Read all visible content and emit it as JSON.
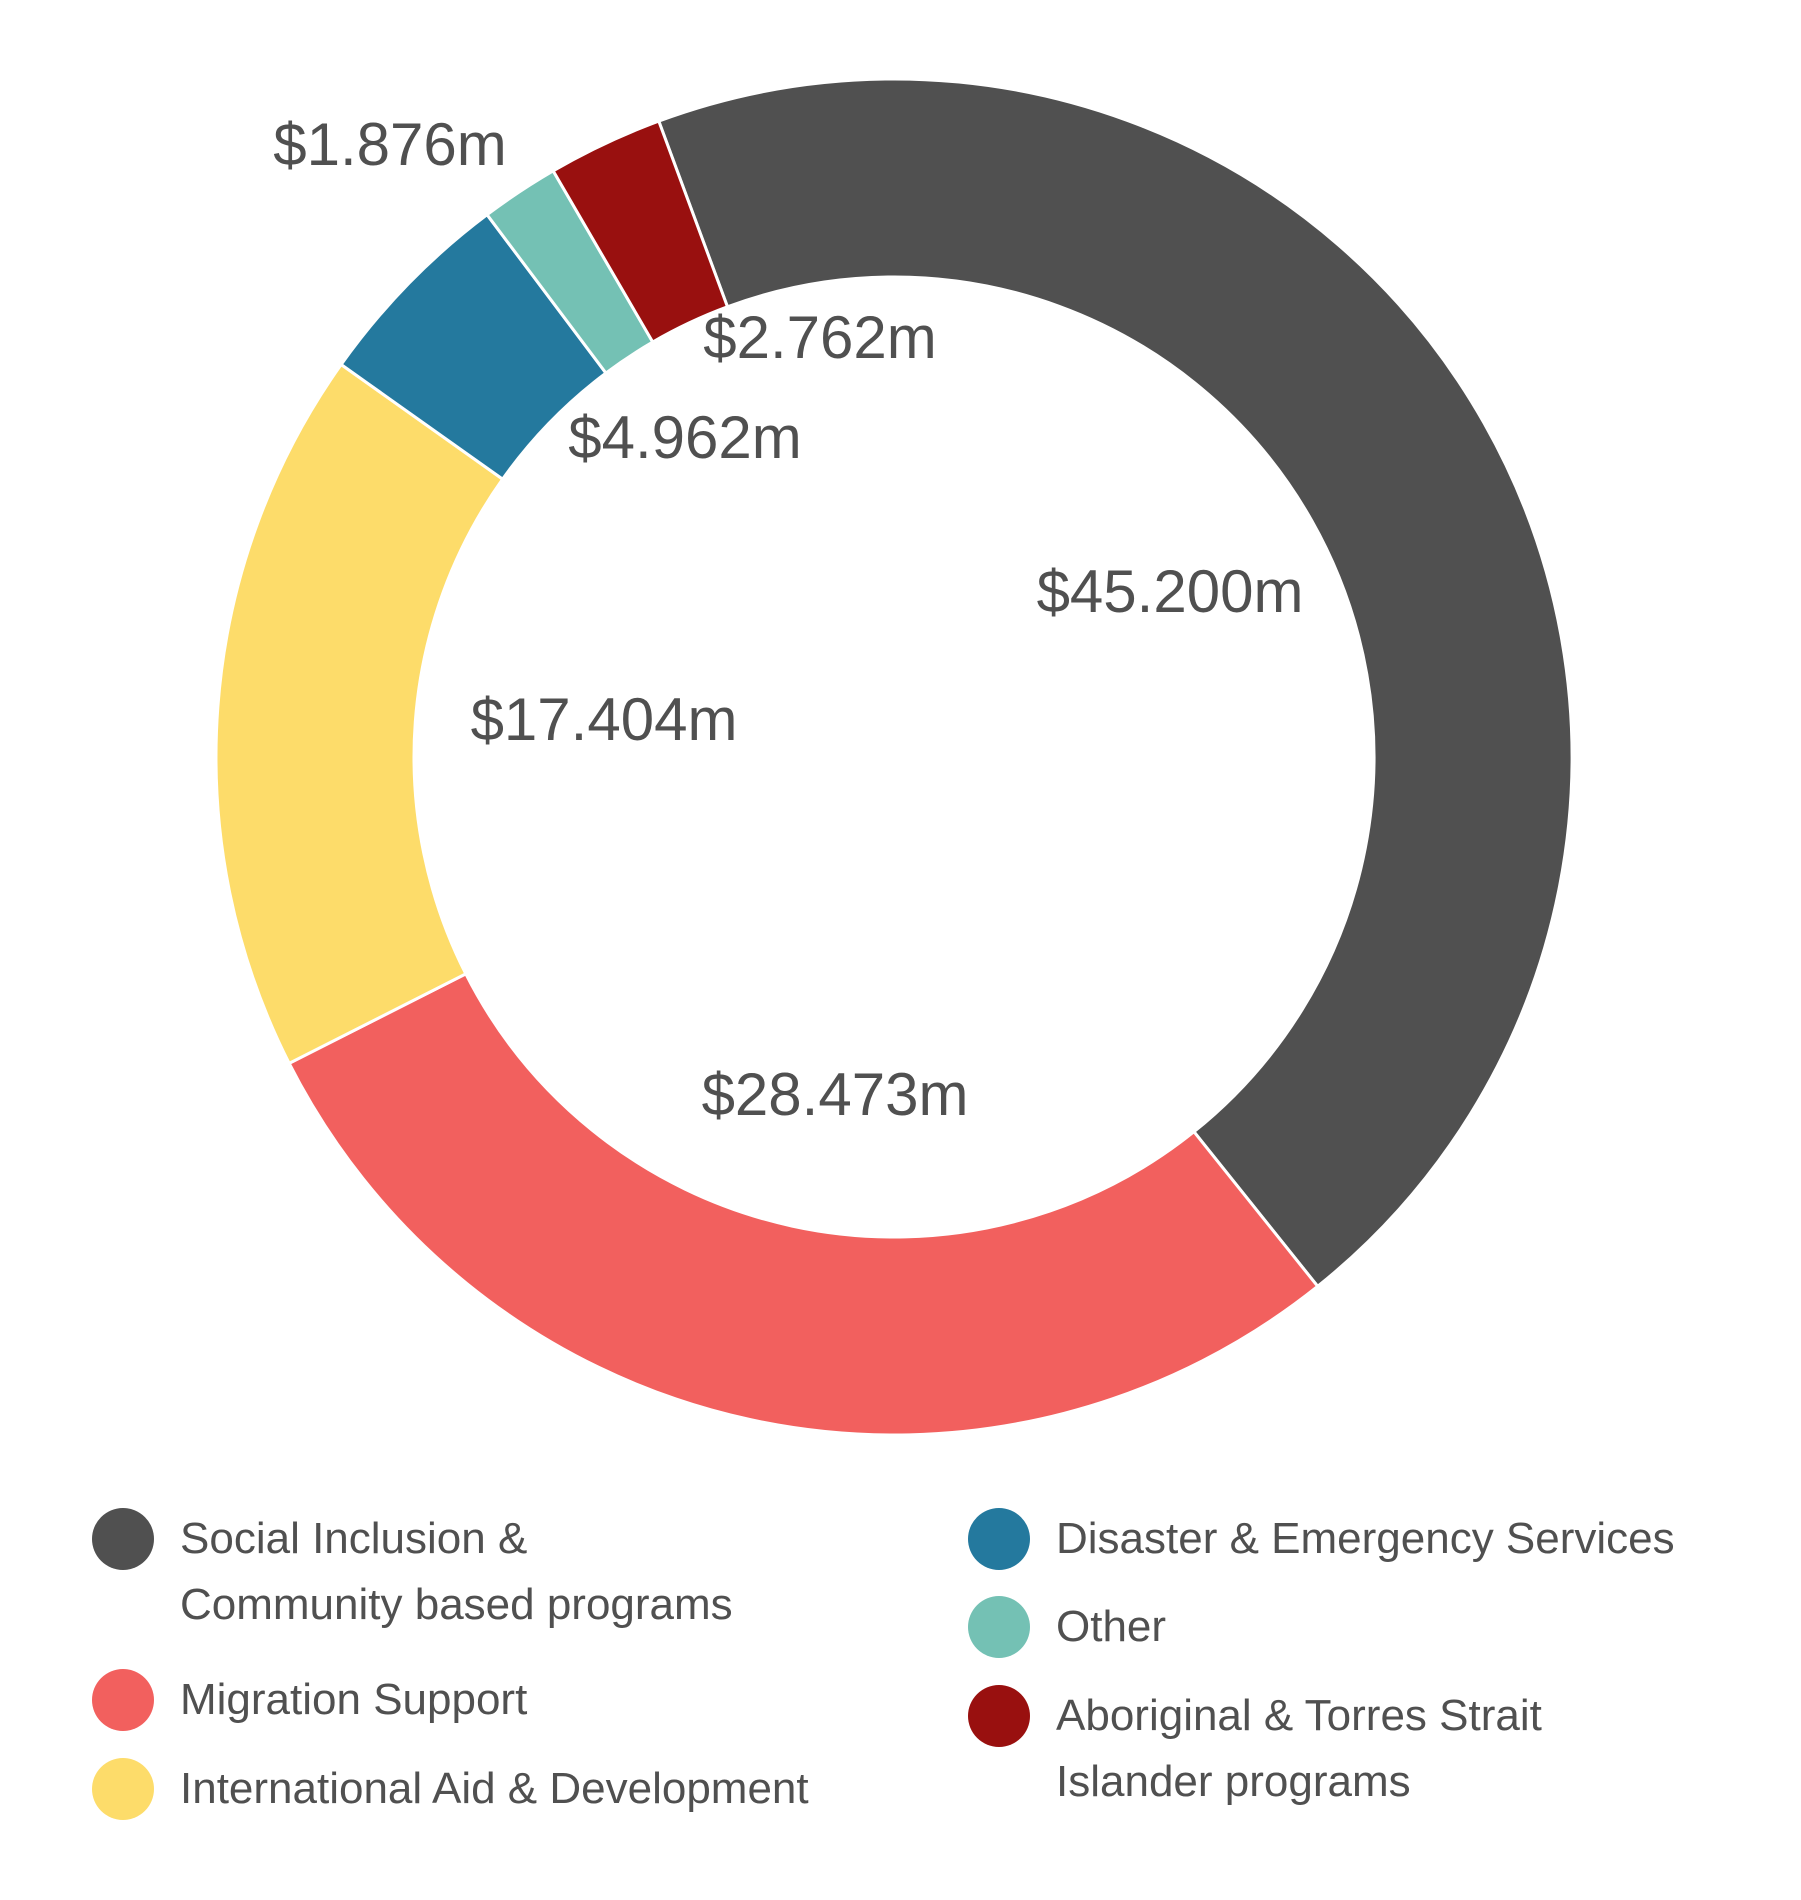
{
  "chart_data": {
    "type": "pie",
    "subtype": "donut",
    "title": "",
    "categories": [
      "Social Inclusion & Community based programs",
      "Migration Support",
      "International Aid & Development",
      "Disaster & Emergency Services",
      "Other",
      "Aboriginal & Torres Strait Islander programs"
    ],
    "values": [
      45.2,
      28.473,
      17.404,
      4.962,
      1.876,
      2.762
    ],
    "value_labels": [
      "$45.200m",
      "$28.473m",
      "$17.404m",
      "$4.962m",
      "$1.876m",
      "$2.762m"
    ],
    "colors": [
      "#505050",
      "#f2605e",
      "#fddc6a",
      "#24799e",
      "#74c1b4",
      "#99100f"
    ],
    "unit": "$m",
    "legend_position": "bottom"
  },
  "legend": {
    "items": [
      {
        "label_lines": [
          "Social Inclusion &",
          "Community based programs"
        ],
        "color": "#505050"
      },
      {
        "label_lines": [
          "Migration Support"
        ],
        "color": "#f2605e"
      },
      {
        "label_lines": [
          "International Aid & Development"
        ],
        "color": "#fddc6a"
      },
      {
        "label_lines": [
          "Disaster & Emergency Services"
        ],
        "color": "#24799e"
      },
      {
        "label_lines": [
          "Other"
        ],
        "color": "#74c1b4"
      },
      {
        "label_lines": [
          "Aboriginal & Torres Strait",
          "Islander programs"
        ],
        "color": "#99100f"
      }
    ]
  }
}
